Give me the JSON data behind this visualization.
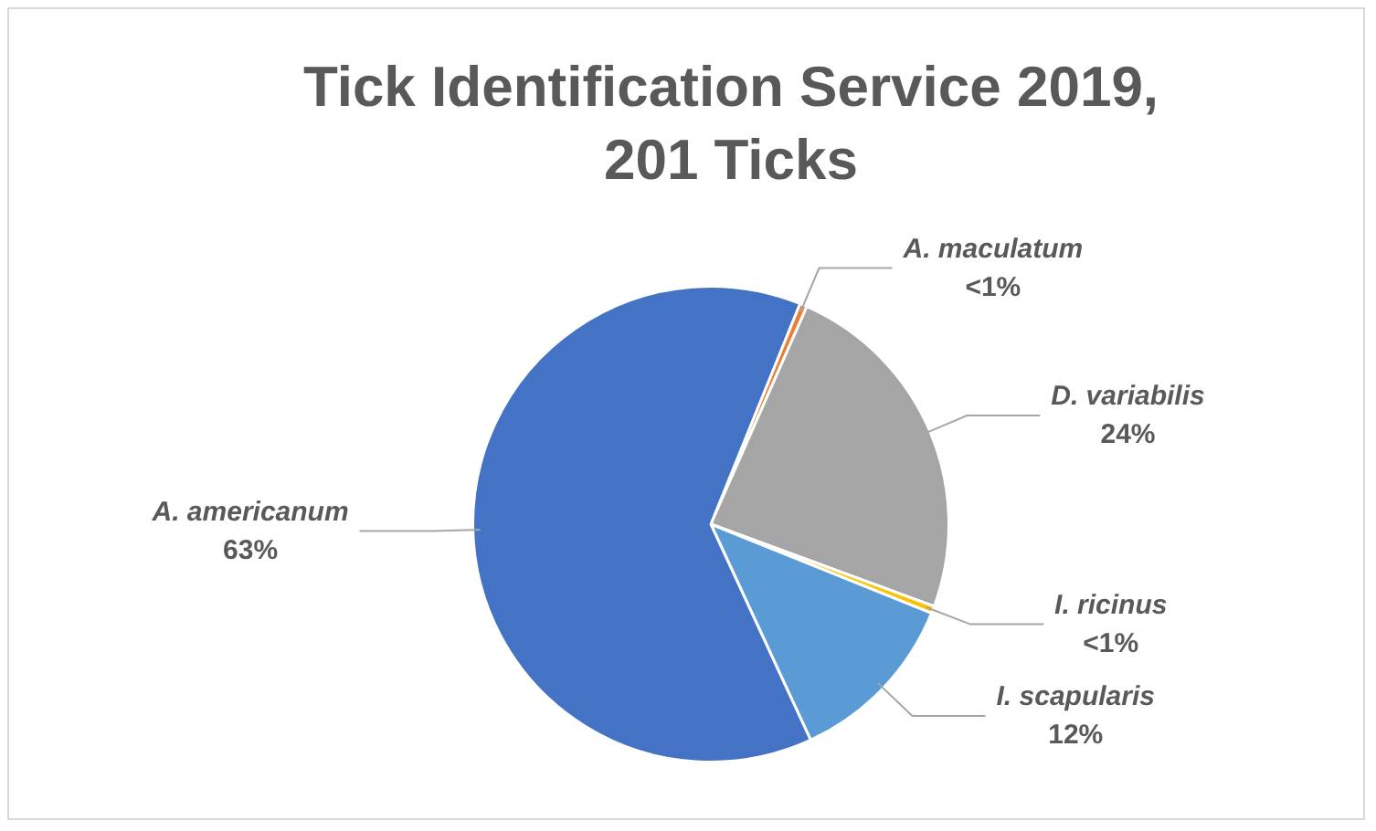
{
  "chart_data": {
    "type": "pie",
    "title": "Tick Identification Service 2019, 201 Ticks",
    "categories": [
      "A. maculatum",
      "D. variabilis",
      "I. ricinus",
      "I. scapularis",
      "A. americanum"
    ],
    "values": [
      0.5,
      24,
      0.5,
      12,
      63
    ],
    "value_labels": [
      "<1%",
      "24%",
      "<1%",
      "12%",
      "63%"
    ],
    "colors": [
      "#ed7d31",
      "#a5a5a5",
      "#ffc000",
      "#5b9bd5",
      "#4472c4"
    ],
    "legend": false
  }
}
